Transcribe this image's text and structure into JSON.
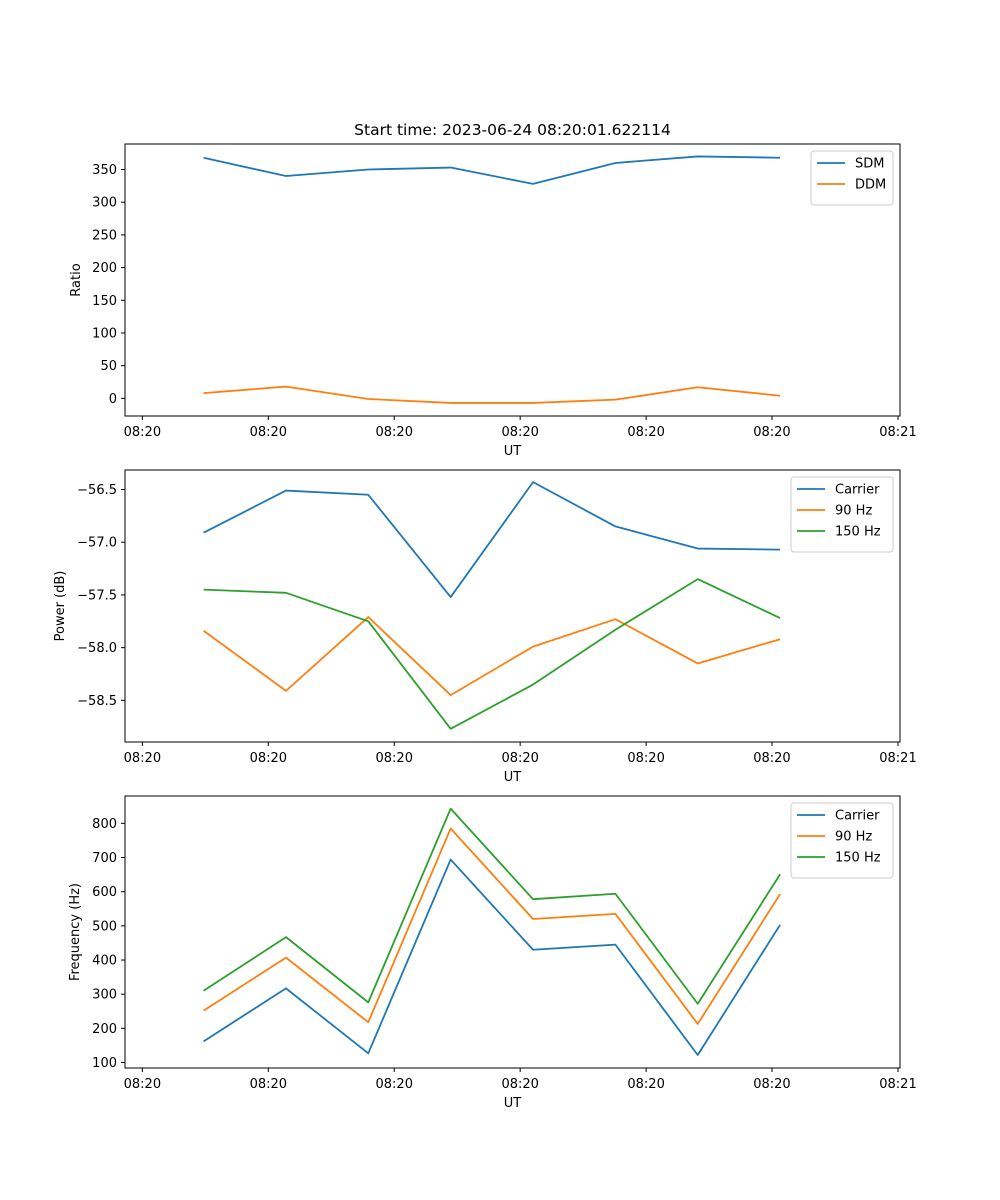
{
  "chart_data": [
    {
      "type": "line",
      "title": "Start time: 2023-06-24 08:20:01.622114",
      "xlabel": "UT",
      "ylabel": "Ratio",
      "xticks": [
        "08:20",
        "08:20",
        "08:20",
        "08:20",
        "08:20",
        "08:20",
        "08:21"
      ],
      "yticks": [
        "0",
        "50",
        "100",
        "150",
        "200",
        "250",
        "300",
        "350"
      ],
      "ytick_values": [
        0,
        50,
        100,
        150,
        200,
        250,
        300,
        350
      ],
      "ylim": [
        -27,
        389
      ],
      "legend": "top-right",
      "x": [
        1,
        2,
        3,
        4,
        5,
        6,
        7,
        8
      ],
      "series": [
        {
          "name": "SDM",
          "color": "#1f77b4",
          "values": [
            368,
            340,
            350,
            353,
            328,
            360,
            370,
            368
          ]
        },
        {
          "name": "DDM",
          "color": "#ff7f0e",
          "values": [
            8,
            18,
            -1,
            -7,
            -7,
            -2,
            17,
            4
          ]
        }
      ]
    },
    {
      "type": "line",
      "title": "",
      "xlabel": "UT",
      "ylabel": "Power (dB)",
      "xticks": [
        "08:20",
        "08:20",
        "08:20",
        "08:20",
        "08:20",
        "08:20",
        "08:21"
      ],
      "yticks": [
        "−58.5",
        "−58.0",
        "−57.5",
        "−57.0",
        "−56.5"
      ],
      "ytick_values": [
        -58.5,
        -58.0,
        -57.5,
        -57.0,
        -56.5
      ],
      "ylim": [
        -58.895,
        -56.315
      ],
      "legend": "top-right",
      "x": [
        1,
        2,
        3,
        4,
        5,
        6,
        7,
        8
      ],
      "series": [
        {
          "name": "Carrier",
          "color": "#1f77b4",
          "values": [
            -56.91,
            -56.51,
            -56.55,
            -57.52,
            -56.43,
            -56.85,
            -57.06,
            -57.07
          ]
        },
        {
          "name": "90 Hz",
          "color": "#ff7f0e",
          "values": [
            -57.84,
            -58.41,
            -57.71,
            -58.45,
            -57.99,
            -57.73,
            -58.15,
            -57.92
          ]
        },
        {
          "name": "150 Hz",
          "color": "#2ca02c",
          "values": [
            -57.45,
            -57.48,
            -57.75,
            -58.77,
            -58.35,
            -57.83,
            -57.35,
            -57.72
          ]
        }
      ]
    },
    {
      "type": "line",
      "title": "",
      "xlabel": "UT",
      "ylabel": "Frequency (Hz)",
      "xticks": [
        "08:20",
        "08:20",
        "08:20",
        "08:20",
        "08:20",
        "08:20",
        "08:21"
      ],
      "yticks": [
        "100",
        "200",
        "300",
        "400",
        "500",
        "600",
        "700",
        "800"
      ],
      "ytick_values": [
        100,
        200,
        300,
        400,
        500,
        600,
        700,
        800
      ],
      "ylim": [
        84,
        880
      ],
      "legend": "top-right",
      "x": [
        1,
        2,
        3,
        4,
        5,
        6,
        7,
        8
      ],
      "series": [
        {
          "name": "Carrier",
          "color": "#1f77b4",
          "values": [
            162,
            317,
            127,
            694,
            430,
            445,
            122,
            503
          ]
        },
        {
          "name": "90 Hz",
          "color": "#ff7f0e",
          "values": [
            252,
            407,
            218,
            785,
            520,
            535,
            213,
            593
          ]
        },
        {
          "name": "150 Hz",
          "color": "#2ca02c",
          "values": [
            310,
            467,
            276,
            843,
            578,
            594,
            272,
            651
          ]
        }
      ]
    }
  ]
}
